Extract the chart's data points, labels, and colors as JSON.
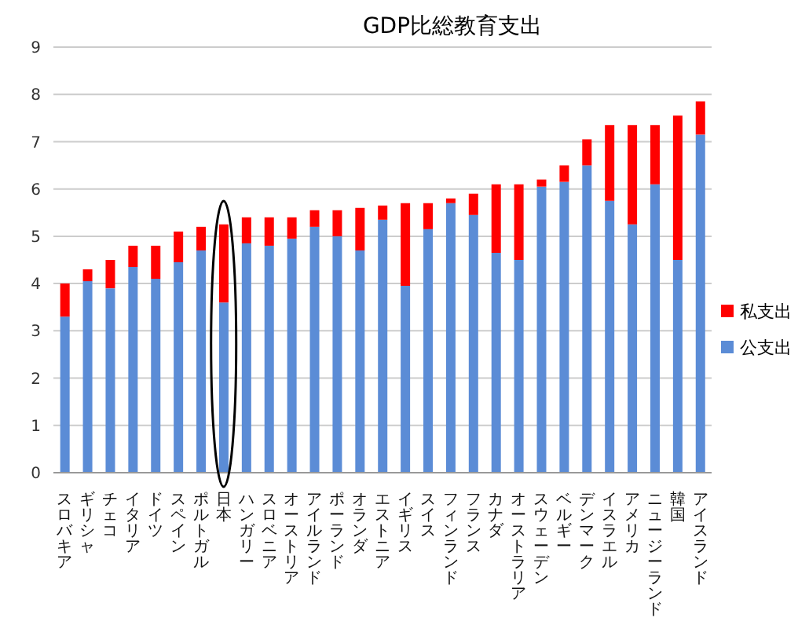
{
  "chart_data": {
    "type": "bar",
    "title": "GDP比総教育支出",
    "stacked": true,
    "categories": [
      "スロバキア",
      "ギリシャ",
      "チェコ",
      "イタリア",
      "ドイツ",
      "スペイン",
      "ポルトガル",
      "日本",
      "ハンガリー",
      "スロベニア",
      "オーストリア",
      "アイルランド",
      "ポーランド",
      "オランダ",
      "エストニア",
      "イギリス",
      "スイス",
      "フィンランド",
      "フランス",
      "カナダ",
      "オーストラリア",
      "スウェーデン",
      "ベルギー",
      "デンマーク",
      "イスラエル",
      "アメリカ",
      "ニュージーランド",
      "韓国",
      "アイスランド"
    ],
    "series": [
      {
        "name": "公支出",
        "color": "#5b8cd6",
        "values": [
          3.3,
          4.05,
          3.9,
          4.35,
          4.1,
          4.45,
          4.7,
          3.6,
          4.85,
          4.8,
          4.95,
          5.2,
          5.0,
          4.7,
          5.35,
          3.95,
          5.15,
          5.7,
          5.45,
          4.65,
          4.5,
          6.05,
          6.15,
          6.5,
          5.75,
          5.25,
          6.1,
          4.5,
          7.15
        ]
      },
      {
        "name": "私支出",
        "color": "#ff0000",
        "values": [
          0.7,
          0.25,
          0.6,
          0.45,
          0.7,
          0.65,
          0.5,
          1.65,
          0.55,
          0.6,
          0.45,
          0.35,
          0.55,
          0.9,
          0.3,
          1.75,
          0.55,
          0.1,
          0.45,
          1.45,
          1.6,
          0.15,
          0.35,
          0.55,
          1.6,
          2.1,
          1.25,
          3.05,
          0.7
        ]
      }
    ],
    "ylim": [
      0,
      9
    ],
    "yticks": [
      0,
      1,
      2,
      3,
      4,
      5,
      6,
      7,
      8,
      9
    ],
    "grid": "y",
    "legend": "right"
  }
}
